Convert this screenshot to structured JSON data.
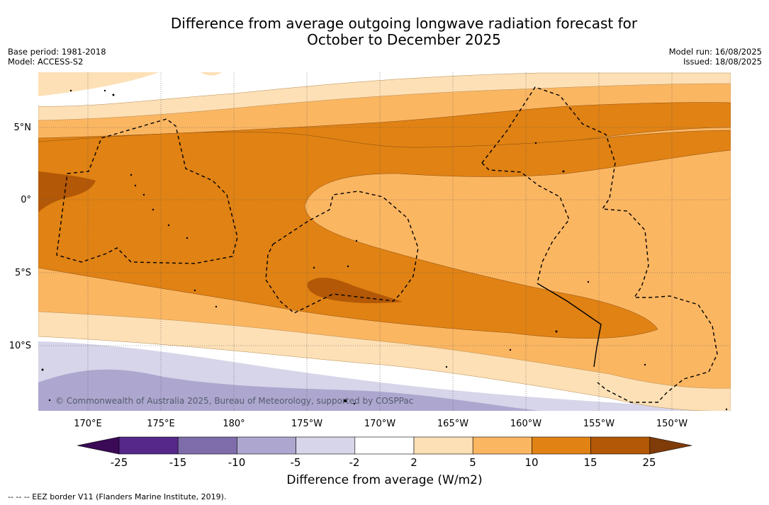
{
  "title_line1": "Difference from average outgoing longwave radiation forecast for",
  "title_line2": "October to December 2025",
  "base_period": "Base period: 1981-2018",
  "model": "Model: ACCESS-S2",
  "model_run": "Model run: 16/08/2025",
  "issued": "Issued: 18/08/2025",
  "copyright": "© Commonwealth of Australia 2025, Bureau of Meteorology, supported by COSPPac",
  "lat_labels": [
    "5°N",
    "0°",
    "5°S",
    "10°S"
  ],
  "lon_labels": [
    "170°E",
    "175°E",
    "180°",
    "175°W",
    "170°W",
    "165°W",
    "160°W",
    "155°W",
    "150°W"
  ],
  "colorbar": {
    "title": "Difference from average (W/m2)",
    "ticks": [
      "-25",
      "-15",
      "-10",
      "-5",
      "-2",
      "2",
      "5",
      "10",
      "15",
      "25"
    ],
    "colors": [
      "#3b0a56",
      "#56288a",
      "#7e6cab",
      "#ada7cf",
      "#d6d5e9",
      "#ffffff",
      "#fde0b6",
      "#fbb662",
      "#e08214",
      "#b35806",
      "#7f3b08"
    ]
  },
  "footer": "--  --  -- EEZ border V11 (Flanders Marine Institute, 2019)."
}
